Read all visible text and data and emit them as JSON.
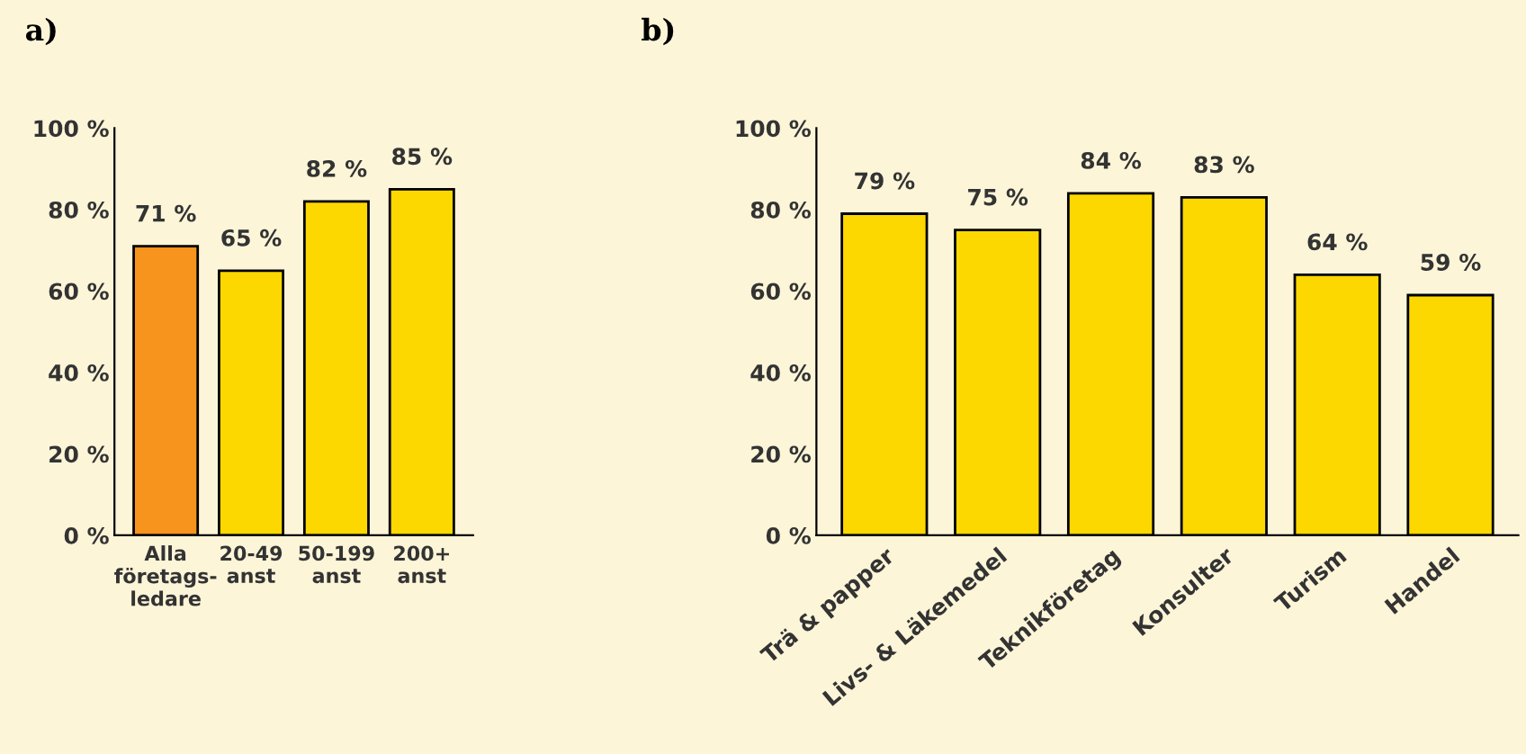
{
  "chart_data": [
    {
      "type": "bar",
      "title": "a)",
      "categories": [
        "Alla\nföretags-\nledare",
        "20-49\nanst",
        "50-199\nanst",
        "200+\nanst"
      ],
      "values": [
        71,
        65,
        82,
        85
      ],
      "colors": [
        "#f7941d",
        "#fcd800",
        "#fcd800",
        "#fcd800"
      ],
      "value_labels": [
        "71 %",
        "65 %",
        "82 %",
        "85 %"
      ],
      "ylim": [
        0,
        100
      ],
      "yticks": [
        {
          "value": 0,
          "label": "0 %"
        },
        {
          "value": 20,
          "label": "20 %"
        },
        {
          "value": 40,
          "label": "40 %"
        },
        {
          "value": 60,
          "label": "60 %"
        },
        {
          "value": 80,
          "label": "80 %"
        },
        {
          "value": 100,
          "label": "100 %"
        }
      ],
      "grid": false,
      "legend": false
    },
    {
      "type": "bar",
      "title": "b)",
      "categories": [
        "Trä & papper",
        "Livs- & Läkemedel",
        "Teknikföretag",
        "Konsulter",
        "Turism",
        "Handel"
      ],
      "values": [
        79,
        75,
        84,
        83,
        64,
        59
      ],
      "colors": [
        "#fcd800",
        "#fcd800",
        "#fcd800",
        "#fcd800",
        "#fcd800",
        "#fcd800"
      ],
      "value_labels": [
        "79 %",
        "75 %",
        "84 %",
        "83 %",
        "64 %",
        "59 %"
      ],
      "ylim": [
        0,
        100
      ],
      "yticks": [
        {
          "value": 0,
          "label": "0 %"
        },
        {
          "value": 20,
          "label": "20 %"
        },
        {
          "value": 40,
          "label": "40 %"
        },
        {
          "value": 60,
          "label": "60 %"
        },
        {
          "value": 80,
          "label": "80 %"
        },
        {
          "value": 100,
          "label": "100 %"
        }
      ],
      "grid": false,
      "legend": false
    }
  ]
}
